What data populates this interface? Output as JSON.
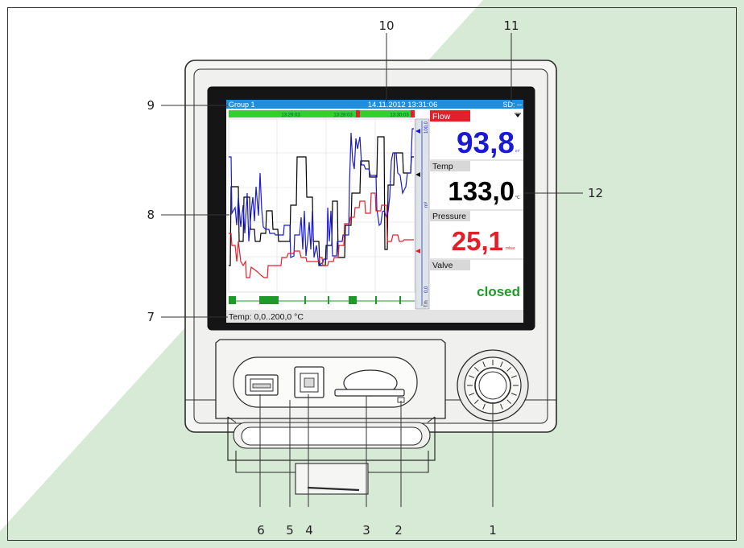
{
  "header": {
    "group": "Group 1",
    "datetime": "14.11.2012 13:31:06",
    "sd_status": "SD: --"
  },
  "timeline": {
    "labels": [
      "13:26:03",
      "13:28:03",
      "13:30:03"
    ]
  },
  "scale": {
    "top": "100,0",
    "bottom": "0,0",
    "unit": "m³",
    "mode": "T/h"
  },
  "channels": [
    {
      "name": "Flow",
      "value": "93,8",
      "unit": "m³",
      "color": "#1a1ad6",
      "tab_color": "#e2202a"
    },
    {
      "name": "Temp",
      "value": "133,0",
      "unit": "°C",
      "color": "#000000",
      "tab_color": "#d8d8d8"
    },
    {
      "name": "Pressure",
      "value": "25,1",
      "unit": "mbar",
      "color": "#e2202a",
      "tab_color": "#d8d8d8"
    },
    {
      "name": "Valve",
      "value": "closed",
      "unit": "",
      "color": "#1f9a2a",
      "tab_color": "#d8d8d8"
    }
  ],
  "status_line": "Temp: 0,0..200,0 °C",
  "callouts": [
    "1",
    "2",
    "3",
    "4",
    "5",
    "6",
    "7",
    "8",
    "9",
    "10",
    "11",
    "12"
  ],
  "colors": {
    "background_green": "#d6ead6",
    "header_blue": "#1e8fe0",
    "timeline_green": "#2fd02f",
    "flow_line": "#1a1ad6",
    "temp_line": "#000000",
    "pressure_line": "#e2202a",
    "valve_bar": "#1f9a2a"
  },
  "icons": [
    "usb-a-port-icon",
    "usb-b-port-icon",
    "sd-card-slot-icon",
    "navigator-knob-icon"
  ]
}
